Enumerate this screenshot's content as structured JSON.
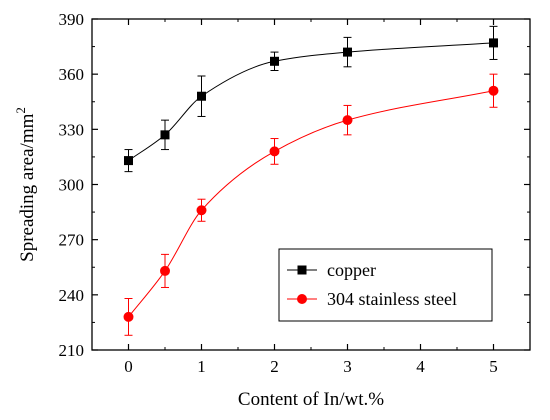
{
  "chart_data": {
    "type": "line",
    "xlabel": "Content of In/wt.%",
    "ylabel": "Spreading area/mm",
    "ylabel_superscript": "2",
    "xlim": [
      -0.5,
      5.5
    ],
    "ylim": [
      210,
      390
    ],
    "xticks": [
      0,
      1,
      2,
      3,
      4,
      5
    ],
    "yticks": [
      210,
      240,
      270,
      300,
      330,
      360,
      390
    ],
    "grid": false,
    "legend_position": "lower-right",
    "series": [
      {
        "name": "copper",
        "color": "#000000",
        "marker": "square",
        "x": [
          0,
          0.5,
          1,
          2,
          3,
          5
        ],
        "y": [
          313,
          327,
          348,
          367,
          372,
          377
        ],
        "err": [
          6,
          8,
          11,
          5,
          8,
          9
        ]
      },
      {
        "name": "304 stainless steel",
        "color": "#ff0000",
        "marker": "circle",
        "x": [
          0,
          0.5,
          1,
          2,
          3,
          5
        ],
        "y": [
          228,
          253,
          286,
          318,
          335,
          351
        ],
        "err": [
          10,
          9,
          6,
          7,
          8,
          9
        ]
      }
    ]
  }
}
